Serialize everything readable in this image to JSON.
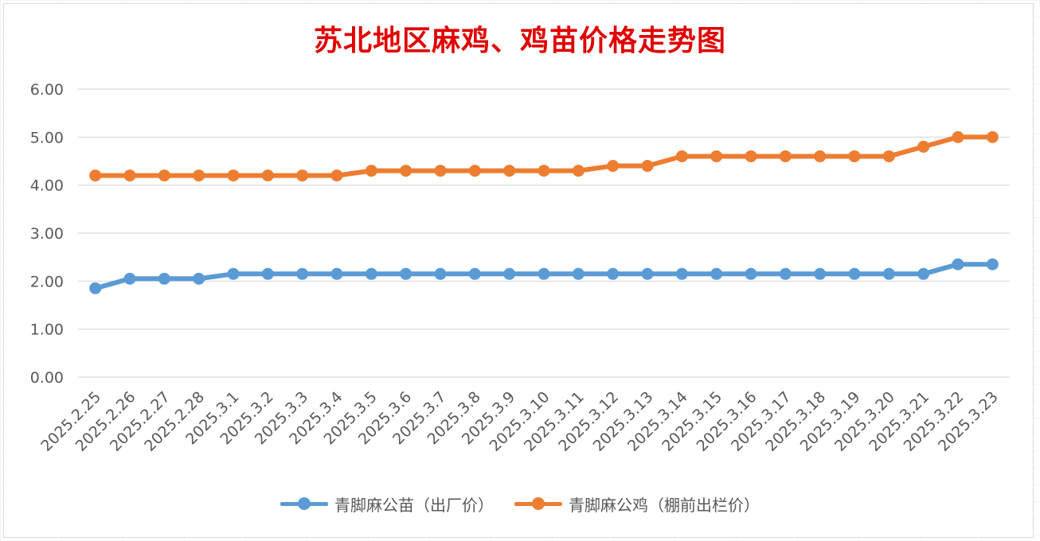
{
  "chart_data": {
    "type": "line",
    "title": "苏北地区麻鸡、鸡苗价格走势图",
    "categories": [
      "2025.2.25",
      "2025.2.26",
      "2025.2.27",
      "2025.2.28",
      "2025.3.1",
      "2025.3.2",
      "2025.3.3",
      "2025.3.4",
      "2025.3.5",
      "2025.3.6",
      "2025.3.7",
      "2025.3.8",
      "2025.3.9",
      "2025.3.10",
      "2025.3.11",
      "2025.3.12",
      "2025.3.13",
      "2025.3.14",
      "2025.3.15",
      "2025.3.16",
      "2025.3.17",
      "2025.3.18",
      "2025.3.19",
      "2025.3.20",
      "2025.3.21",
      "2025.3.22",
      "2025.3.23"
    ],
    "series": [
      {
        "name": "青脚麻公苗（出厂价）",
        "color": "#5b9bd5",
        "values": [
          1.85,
          2.05,
          2.05,
          2.05,
          2.15,
          2.15,
          2.15,
          2.15,
          2.15,
          2.15,
          2.15,
          2.15,
          2.15,
          2.15,
          2.15,
          2.15,
          2.15,
          2.15,
          2.15,
          2.15,
          2.15,
          2.15,
          2.15,
          2.15,
          2.15,
          2.35,
          2.35
        ]
      },
      {
        "name": "青脚麻公鸡（棚前出栏价）",
        "color": "#ed7d31",
        "values": [
          4.2,
          4.2,
          4.2,
          4.2,
          4.2,
          4.2,
          4.2,
          4.2,
          4.3,
          4.3,
          4.3,
          4.3,
          4.3,
          4.3,
          4.3,
          4.4,
          4.4,
          4.6,
          4.6,
          4.6,
          4.6,
          4.6,
          4.6,
          4.6,
          4.8,
          5.0,
          5.0
        ]
      }
    ],
    "ylim": [
      0,
      6
    ],
    "yticks": [
      "0.00",
      "1.00",
      "2.00",
      "3.00",
      "4.00",
      "5.00",
      "6.00"
    ],
    "grid": true,
    "legend": "bottom"
  }
}
